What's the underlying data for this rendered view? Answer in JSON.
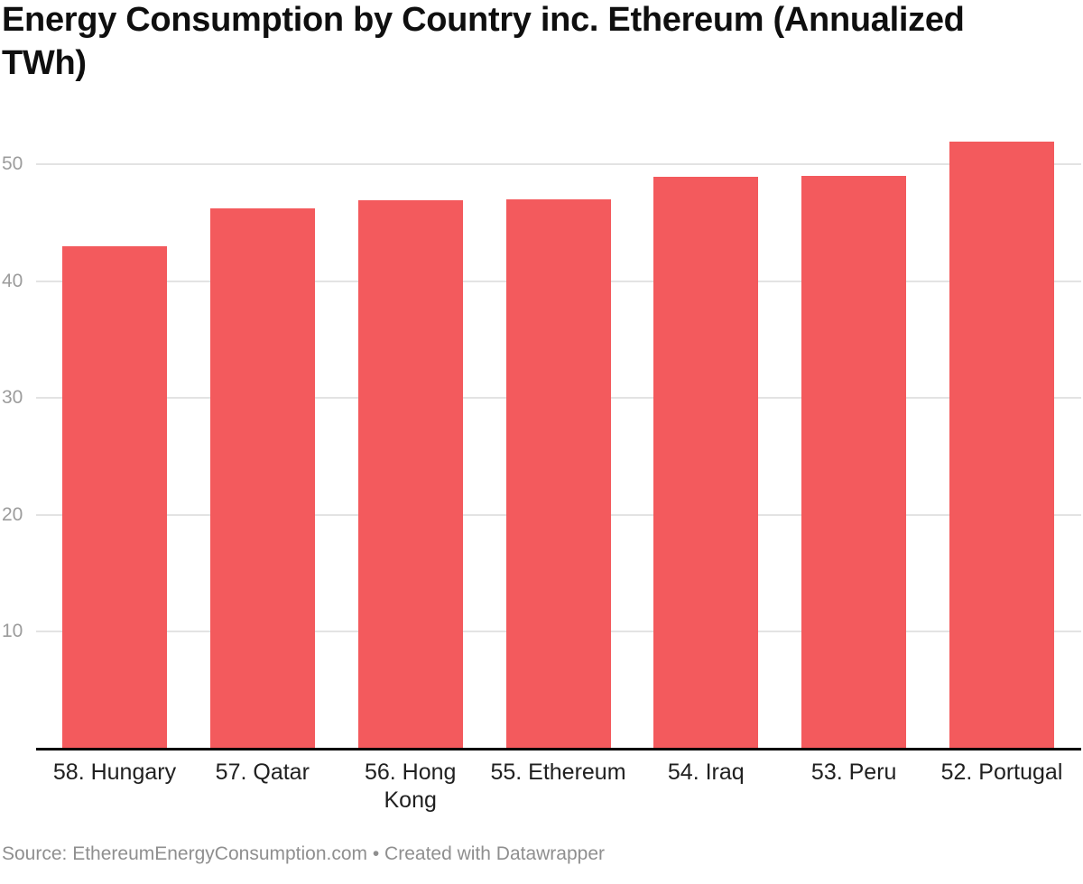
{
  "chart_data": {
    "type": "bar",
    "title": "Energy Consumption by Country inc. Ethereum (Annualized TWh)",
    "categories": [
      "58. Hungary",
      "57. Qatar",
      "56. Hong Kong",
      "55. Ethereum",
      "54. Iraq",
      "53. Peru",
      "52. Portugal"
    ],
    "values": [
      43,
      46.2,
      46.9,
      47,
      48.9,
      49,
      51.9
    ],
    "xlabel": "",
    "ylabel": "",
    "yticks": [
      10,
      20,
      30,
      40,
      50
    ],
    "ylim": [
      0,
      53
    ],
    "grid": true,
    "legend": "none",
    "bar_color": "#F35A5D",
    "gridline_color": "#e3e3e3",
    "axis_color": "#000000",
    "tick_label_color": "#9c9c9c",
    "category_label_color": "#202020",
    "source_note": "Source: EthereumEnergyConsumption.com • Created with Datawrapper"
  }
}
